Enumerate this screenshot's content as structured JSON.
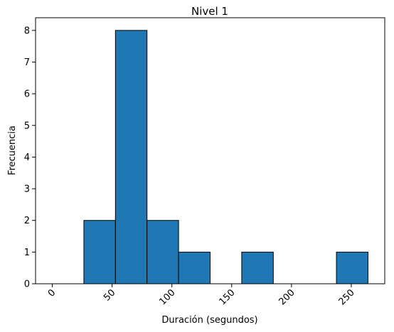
{
  "chart_data": {
    "type": "bar",
    "title": "Nivel 1",
    "xlabel": "Duración (segundos)",
    "ylabel": "Frecuencia",
    "bin_edges": [
      0,
      26.4,
      52.8,
      79.2,
      105.6,
      132,
      158.4,
      184.8,
      211.2,
      237.6,
      264
    ],
    "values": [
      0,
      2,
      8,
      2,
      1,
      0,
      1,
      0,
      0,
      1
    ],
    "xlim": [
      -14,
      278
    ],
    "ylim": [
      0,
      8.4
    ],
    "xticks": [
      0,
      50,
      100,
      150,
      200,
      250
    ],
    "xtick_labels": [
      "0",
      "50",
      "100",
      "150",
      "200",
      "250"
    ],
    "yticks": [
      0,
      1,
      2,
      3,
      4,
      5,
      6,
      7,
      8
    ],
    "ytick_labels": [
      "0",
      "1",
      "2",
      "3",
      "4",
      "5",
      "6",
      "7",
      "8"
    ],
    "bar_color": "#1f77b4",
    "edge_color": "#000000",
    "grid": false
  }
}
